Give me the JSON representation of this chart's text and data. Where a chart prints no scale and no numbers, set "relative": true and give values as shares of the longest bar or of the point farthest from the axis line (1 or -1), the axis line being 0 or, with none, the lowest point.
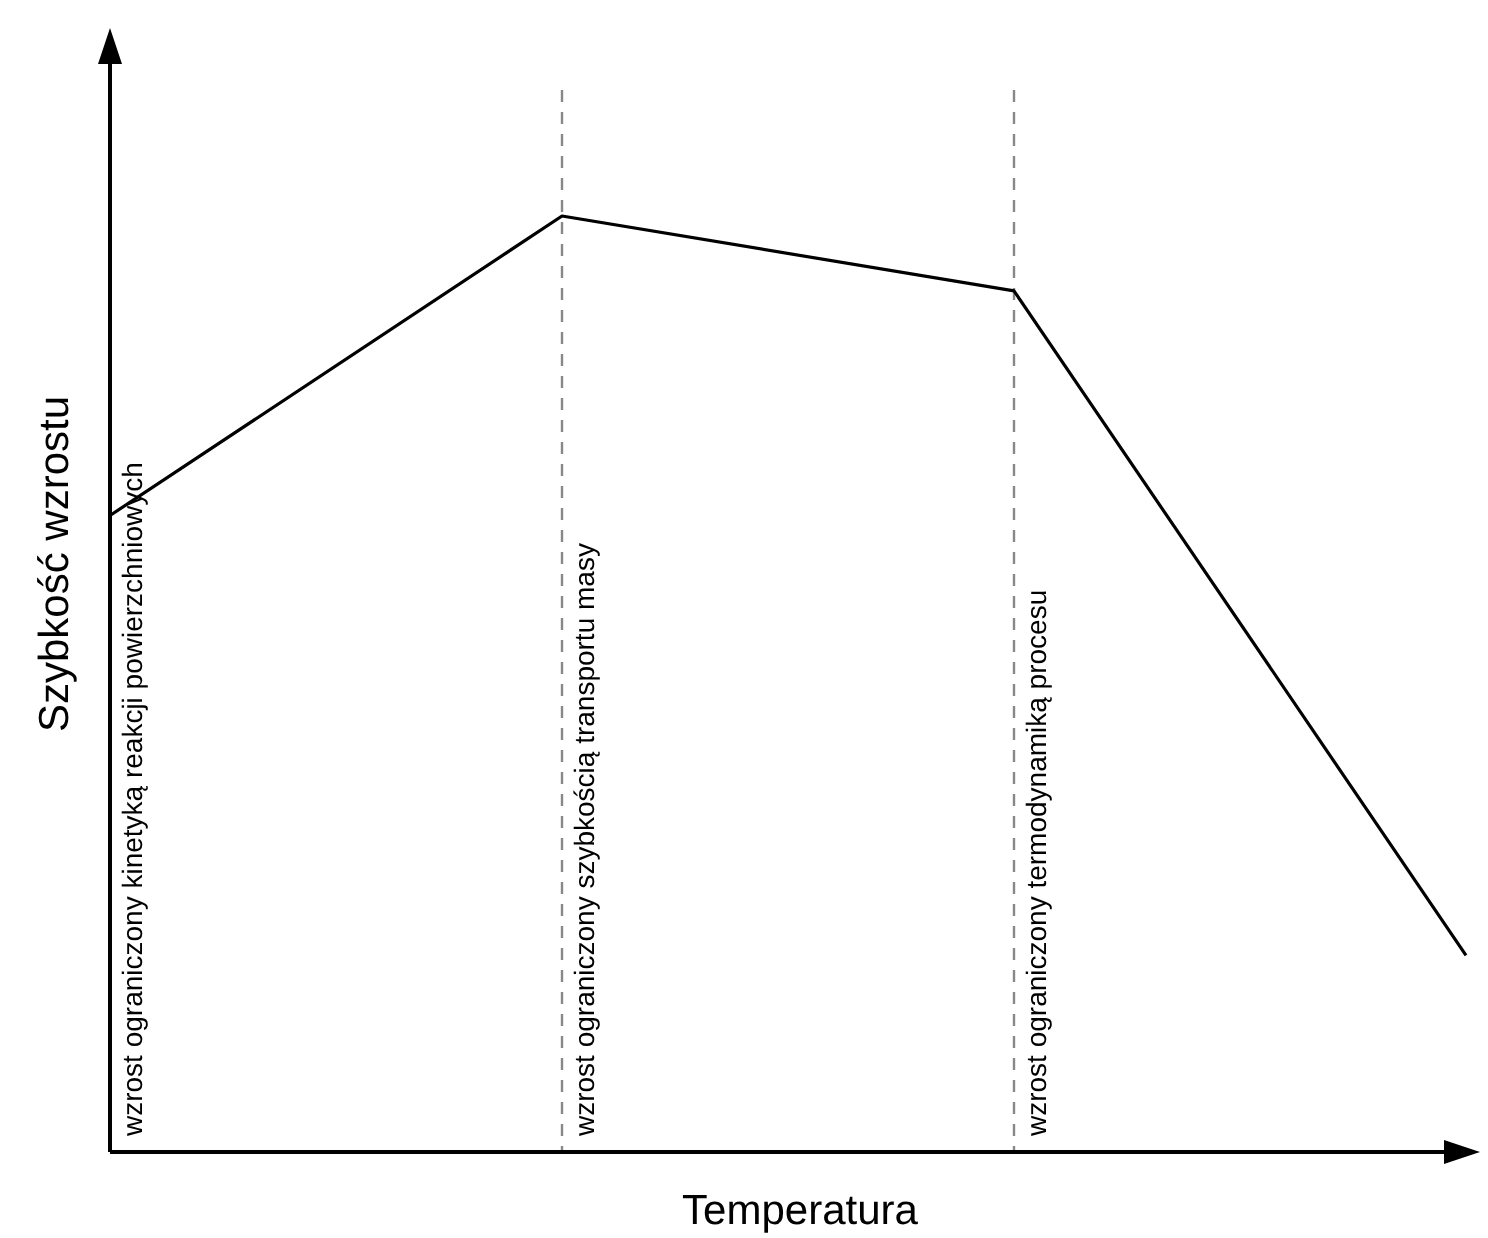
{
  "chart_data": {
    "type": "line",
    "relative": true,
    "xlabel": "Temperatura",
    "ylabel": "Szybkość wzrostu",
    "categories": [
      null,
      null,
      null,
      null
    ],
    "series": [
      {
        "color": "#000000",
        "values": [
          0.68,
          1,
          0.92,
          0.21
        ]
      }
    ],
    "annotations": [
      "wzrost ograniczony kinetyką reakcji powierzchniowych",
      "wzrost ograniczony szybkością transportu masy",
      "wzrost ograniczony termodynamiką procesu"
    ]
  }
}
